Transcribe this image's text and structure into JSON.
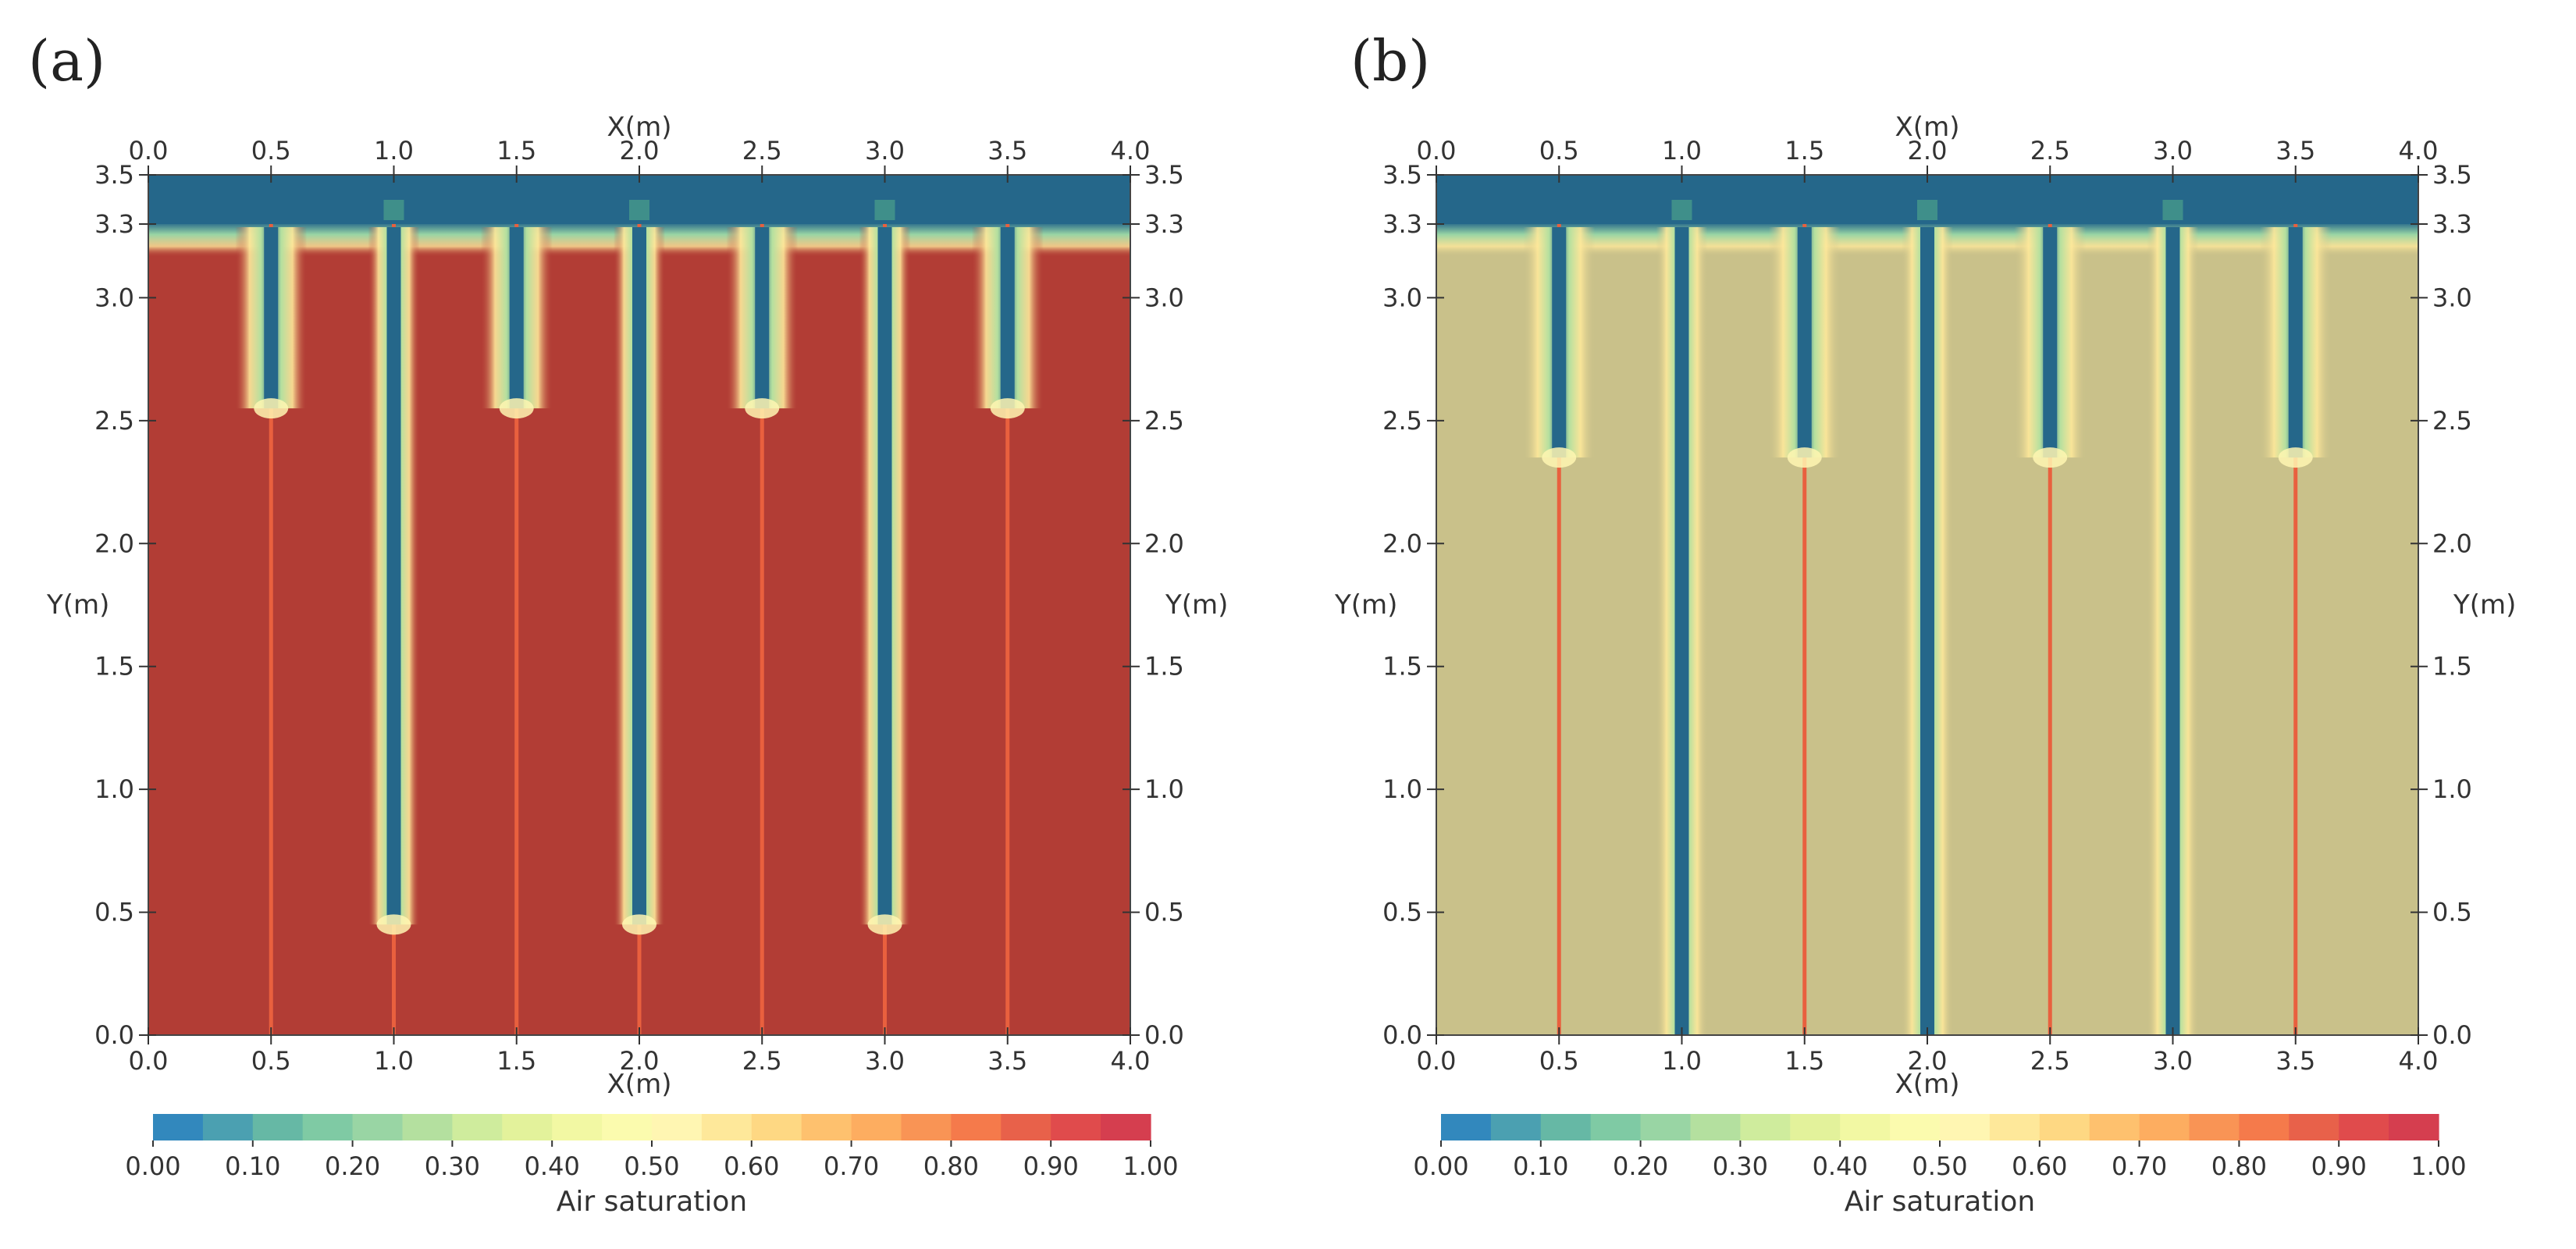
{
  "chart_data": [
    {
      "panel_label": "(a)",
      "type": "heatmap",
      "variable": "Air saturation",
      "xlabel": "X(m)",
      "ylabel": "Y(m)",
      "xlim": [
        0,
        4
      ],
      "ylim": [
        0,
        3.5
      ],
      "xticks": [
        "0.0",
        "0.5",
        "1.0",
        "1.5",
        "2.0",
        "2.5",
        "3.0",
        "3.5",
        "4.0"
      ],
      "yticks": [
        "0.0",
        "0.5",
        "1.0",
        "1.5",
        "2.0",
        "2.5",
        "3.0",
        "3.3",
        "3.5"
      ],
      "background_color": "#b23d35",
      "top_layer": {
        "y_from": 3.3,
        "y_to": 3.5,
        "color": "#25678a"
      },
      "short_plumes": {
        "x": [
          0.5,
          1.5,
          2.5,
          3.5
        ],
        "tip_y": 2.55
      },
      "long_plumes": {
        "x": [
          1.0,
          2.0,
          3.0
        ],
        "tip_y": 0.45
      },
      "thin_lines": {
        "x": [
          0.5,
          1.0,
          1.5,
          2.0,
          2.5,
          3.0,
          3.5
        ],
        "color": "#e9603e"
      },
      "colorbar": {
        "min": 0,
        "max": 1,
        "tick_labels": [
          "0.00",
          "0.10",
          "0.20",
          "0.30",
          "0.40",
          "0.50",
          "0.60",
          "0.70",
          "0.80",
          "0.90",
          "1.00"
        ],
        "title": "Air saturation",
        "colors": [
          "#3288bd",
          "#4ba0b1",
          "#66b8a5",
          "#7fcaa4",
          "#99d5a4",
          "#b4e09f",
          "#cfec9d",
          "#e3f29b",
          "#f2f8a3",
          "#fbfbae",
          "#fff6b2",
          "#fee89a",
          "#fed883",
          "#fec16e",
          "#fdad60",
          "#f99455",
          "#f57a4b",
          "#e8614a",
          "#e04b4c",
          "#d53e4f"
        ]
      }
    },
    {
      "panel_label": "(b)",
      "type": "heatmap",
      "variable": "Air saturation",
      "xlabel": "X(m)",
      "ylabel": "Y(m)",
      "xlim": [
        0,
        4
      ],
      "ylim": [
        0,
        3.5
      ],
      "xticks": [
        "0.0",
        "0.5",
        "1.0",
        "1.5",
        "2.0",
        "2.5",
        "3.0",
        "3.5",
        "4.0"
      ],
      "yticks": [
        "0.0",
        "0.5",
        "1.0",
        "1.5",
        "2.0",
        "2.5",
        "3.0",
        "3.3",
        "3.5"
      ],
      "background_color": "#c9c18a",
      "top_layer": {
        "y_from": 3.3,
        "y_to": 3.5,
        "color": "#25678a"
      },
      "short_plumes": {
        "x": [
          0.5,
          1.5,
          2.5,
          3.5
        ],
        "tip_y": 2.35
      },
      "long_plumes": {
        "x": [
          1.0,
          2.0,
          3.0
        ],
        "tip_y": 0.0
      },
      "thin_lines": {
        "x": [
          0.5,
          1.5,
          2.5,
          3.5
        ],
        "color": "#e9603e"
      },
      "colorbar": {
        "min": 0,
        "max": 1,
        "tick_labels": [
          "0.00",
          "0.10",
          "0.20",
          "0.30",
          "0.40",
          "0.50",
          "0.60",
          "0.70",
          "0.80",
          "0.90",
          "1.00"
        ],
        "title": "Air saturation",
        "colors": [
          "#3288bd",
          "#4ba0b1",
          "#66b8a5",
          "#7fcaa4",
          "#99d5a4",
          "#b4e09f",
          "#cfec9d",
          "#e3f29b",
          "#f2f8a3",
          "#fbfbae",
          "#fff6b2",
          "#fee89a",
          "#fed883",
          "#fec16e",
          "#fdad60",
          "#f99455",
          "#f57a4b",
          "#e8614a",
          "#e04b4c",
          "#d53e4f"
        ]
      }
    }
  ]
}
